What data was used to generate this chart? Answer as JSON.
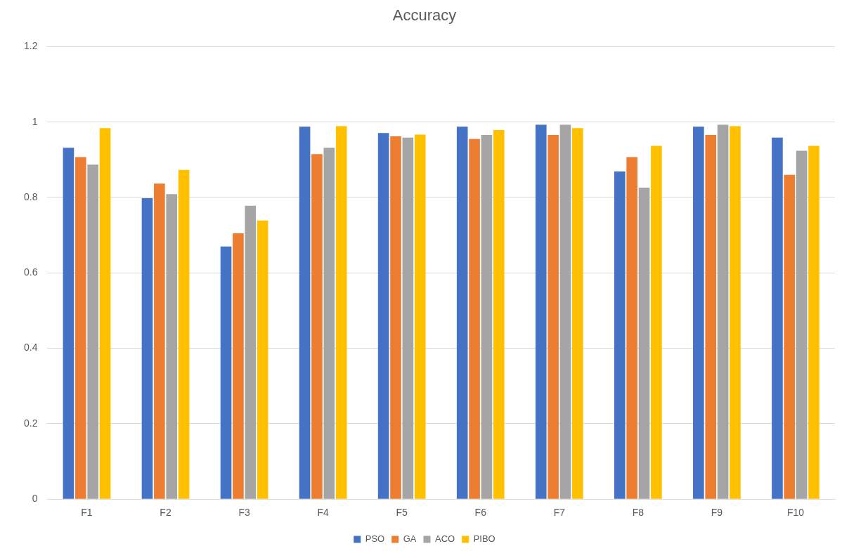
{
  "chart_data": {
    "type": "bar",
    "title": "Accuracy",
    "categories": [
      "F1",
      "F2",
      "F3",
      "F4",
      "F5",
      "F6",
      "F7",
      "F8",
      "F9",
      "F10"
    ],
    "series": [
      {
        "name": "PSO",
        "color": "#4472c4",
        "values": [
          0.932,
          0.798,
          0.67,
          0.988,
          0.971,
          0.988,
          0.993,
          0.869,
          0.988,
          0.959
        ]
      },
      {
        "name": "GA",
        "color": "#ed7d31",
        "values": [
          0.907,
          0.837,
          0.705,
          0.915,
          0.962,
          0.955,
          0.966,
          0.907,
          0.966,
          0.86
        ]
      },
      {
        "name": "ACO",
        "color": "#a5a5a5",
        "values": [
          0.887,
          0.809,
          0.778,
          0.932,
          0.959,
          0.966,
          0.993,
          0.826,
          0.993,
          0.924
        ]
      },
      {
        "name": "PIBO",
        "color": "#ffc000",
        "values": [
          0.984,
          0.873,
          0.739,
          0.989,
          0.967,
          0.979,
          0.984,
          0.937,
          0.989,
          0.937
        ]
      }
    ],
    "ylim": [
      0,
      1.2
    ],
    "yticks": [
      0,
      0.2,
      0.4,
      0.6,
      0.8,
      1,
      1.2
    ],
    "grid": "y",
    "legend": "bottom"
  }
}
